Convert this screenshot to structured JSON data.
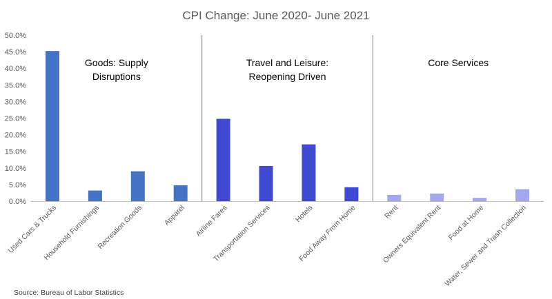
{
  "chart_data": {
    "type": "bar",
    "title": "CPI Change: June 2020- June 2021",
    "source": "Source: Bureau of Labor Statistics",
    "ylim": [
      0,
      50
    ],
    "y_ticks": [
      "0.0%",
      "5.0%",
      "10.0%",
      "15.0%",
      "20.0%",
      "25.0%",
      "30.0%",
      "35.0%",
      "40.0%",
      "45.0%",
      "50.0%"
    ],
    "y_tick_values": [
      0,
      5,
      10,
      15,
      20,
      25,
      30,
      35,
      40,
      45,
      50
    ],
    "grid": false,
    "categories": [
      "Used Cars & Trucks",
      "Household Furnishings",
      "Recreation Goods",
      "Apparel",
      "Airline Fares",
      "Transportation Services",
      "Hotels",
      "Food Away From Home",
      "Rent",
      "Owners Equivalent Rent",
      "Food at Home",
      "Water, Sewer and Trash Collection"
    ],
    "values": [
      45.2,
      3.2,
      9.0,
      4.8,
      24.8,
      10.6,
      17.1,
      4.2,
      1.9,
      2.3,
      1.0,
      3.6
    ],
    "groups": [
      {
        "label_lines": [
          "Goods: Supply",
          "Disruptions"
        ],
        "start": 0,
        "end": 3,
        "color": "#4472c4"
      },
      {
        "label_lines": [
          "Travel and Leisure:",
          "Reopening Driven"
        ],
        "start": 4,
        "end": 7,
        "color": "#3f4ad1"
      },
      {
        "label_lines": [
          "Core Services"
        ],
        "start": 8,
        "end": 11,
        "color": "#a3a8ec"
      }
    ]
  }
}
